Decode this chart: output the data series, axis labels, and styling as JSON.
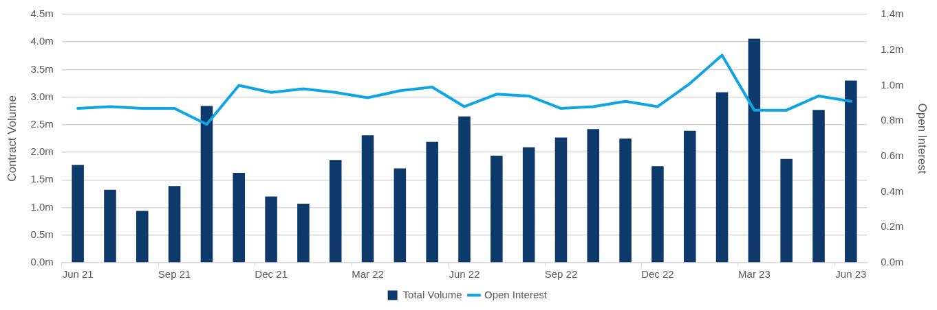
{
  "chart_data": {
    "type": "bar",
    "categories": [
      "Jun 21",
      null,
      null,
      "Sep 21",
      null,
      null,
      "Dec 21",
      null,
      null,
      "Mar 22",
      null,
      null,
      "Jun 22",
      null,
      null,
      "Sep 22",
      null,
      null,
      "Dec 22",
      null,
      null,
      "Mar 23",
      null,
      null,
      "Jun 23"
    ],
    "series": [
      {
        "name": "Total Volume",
        "color": "#0e3a6b",
        "values": [
          1.77,
          1.32,
          0.94,
          1.39,
          2.84,
          1.63,
          1.2,
          1.07,
          1.86,
          2.31,
          1.71,
          2.19,
          2.65,
          1.94,
          2.09,
          2.27,
          2.42,
          2.25,
          1.75,
          2.39,
          3.09,
          4.06,
          1.88,
          2.77,
          3.3
        ]
      },
      {
        "name": "Open Interest",
        "type": "line",
        "axis": "y2",
        "color": "#0ea5e4",
        "values": [
          0.87,
          0.88,
          0.87,
          0.87,
          0.78,
          1.0,
          0.96,
          0.98,
          0.96,
          0.93,
          0.97,
          0.99,
          0.88,
          0.95,
          0.94,
          0.87,
          0.88,
          0.91,
          0.88,
          1.01,
          1.17,
          0.86,
          0.86,
          0.94,
          0.91
        ]
      }
    ],
    "ylabel": "Contract Volume",
    "y2label": "Open Interest",
    "ylim": [
      0,
      4.5
    ],
    "yticks": [
      {
        "value": 0,
        "label": "0.0m"
      },
      {
        "value": 0.5,
        "label": "0.5m"
      },
      {
        "value": 1,
        "label": "1.0m"
      },
      {
        "value": 1.5,
        "label": "1.5m"
      },
      {
        "value": 2,
        "label": "2.0m"
      },
      {
        "value": 2.5,
        "label": "2.5m"
      },
      {
        "value": 3,
        "label": "3.0m"
      },
      {
        "value": 3.5,
        "label": "3.5m"
      },
      {
        "value": 4,
        "label": "4.0m"
      },
      {
        "value": 4.5,
        "label": "4.5m"
      }
    ],
    "y2lim": [
      0,
      1.4
    ],
    "y2ticks": [
      {
        "value": 0,
        "label": "0.0m"
      },
      {
        "value": 0.2,
        "label": "0.2m"
      },
      {
        "value": 0.4,
        "label": "0.4m"
      },
      {
        "value": 0.6,
        "label": "0.6m"
      },
      {
        "value": 0.8,
        "label": "0.8m"
      },
      {
        "value": 1,
        "label": "1.0m"
      },
      {
        "value": 1.2,
        "label": "1.2m"
      },
      {
        "value": 1.4,
        "label": "1.4m"
      }
    ],
    "grid": "y",
    "legend": "bottom",
    "marker": "none",
    "line_style": "solid"
  }
}
